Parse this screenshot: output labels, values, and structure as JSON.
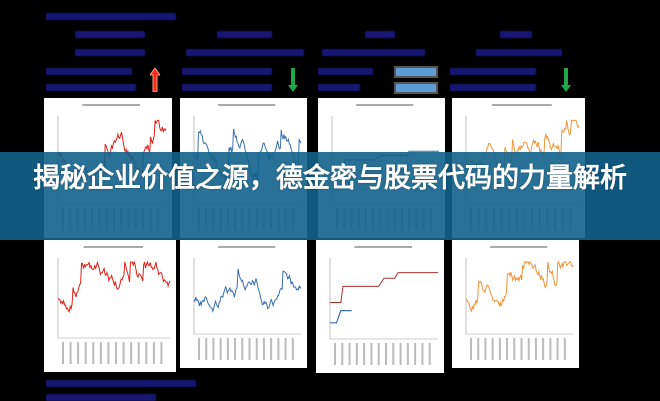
{
  "banner": {
    "title": "揭秘企业价值之源，德金密与股票代码的力量解析"
  },
  "colors": {
    "banner": "#12628c",
    "series_red": "#e0201a",
    "series_blue": "#3a6fb0",
    "series_darkred": "#b03030",
    "series_orange": "#f0953a",
    "arrow_up": "#ff2a1a",
    "arrow_down": "#1fa84a"
  },
  "icons": [
    "arrow-up-icon",
    "arrow-down-icon",
    "arrow-down-icon",
    "equal-icon"
  ]
}
